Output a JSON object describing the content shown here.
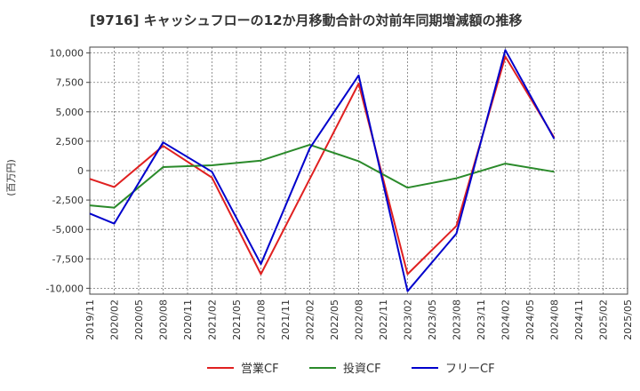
{
  "chart_data": {
    "type": "line",
    "title": "[9716]  キャッシュフローの12か月移動合計の対前年同期増減額の推移",
    "ylabel": "(百万円)",
    "xlabel": "",
    "ylim": [
      -10500,
      10500
    ],
    "yticks": [
      10000,
      7500,
      5000,
      2500,
      0,
      -2500,
      -5000,
      -7500,
      -10000
    ],
    "ytick_labels": [
      "10,000",
      "7,500",
      "5,000",
      "2,500",
      "0",
      "-2,500",
      "-5,000",
      "-7,500",
      "-10,000"
    ],
    "grid": true,
    "legend_position": "bottom-center",
    "categories": [
      "2019/11",
      "2020/02",
      "2020/05",
      "2020/08",
      "2020/11",
      "2021/02",
      "2021/05",
      "2021/08",
      "2021/11",
      "2022/02",
      "2022/05",
      "2022/08",
      "2022/11",
      "2023/02",
      "2023/05",
      "2023/08",
      "2023/11",
      "2024/02",
      "2024/05",
      "2024/08",
      "2024/11",
      "2025/02",
      "2025/05"
    ],
    "series": [
      {
        "name": "営業CF",
        "color": "#e02020",
        "x": [
          "2019/11",
          "2020/02",
          "2020/08",
          "2021/02",
          "2021/08",
          "2022/02",
          "2022/08",
          "2023/02",
          "2023/08",
          "2024/02",
          "2024/08"
        ],
        "values": [
          -700,
          -1400,
          2100,
          -600,
          -8800,
          -700,
          7400,
          -8800,
          -4700,
          9700,
          2800
        ]
      },
      {
        "name": "投資CF",
        "color": "#2a8a2a",
        "x": [
          "2019/11",
          "2020/02",
          "2020/08",
          "2021/02",
          "2021/08",
          "2022/02",
          "2022/08",
          "2023/02",
          "2023/08",
          "2024/02",
          "2024/08"
        ],
        "values": [
          -2950,
          -3150,
          300,
          450,
          850,
          2200,
          800,
          -1450,
          -650,
          600,
          -100
        ]
      },
      {
        "name": "フリーCF",
        "color": "#0000cc",
        "x": [
          "2019/11",
          "2020/02",
          "2020/08",
          "2021/02",
          "2021/08",
          "2022/02",
          "2022/08",
          "2023/02",
          "2023/08",
          "2024/02",
          "2024/08"
        ],
        "values": [
          -3650,
          -4500,
          2400,
          -100,
          -7950,
          1900,
          8100,
          -10250,
          -5350,
          10250,
          2700
        ]
      }
    ]
  }
}
